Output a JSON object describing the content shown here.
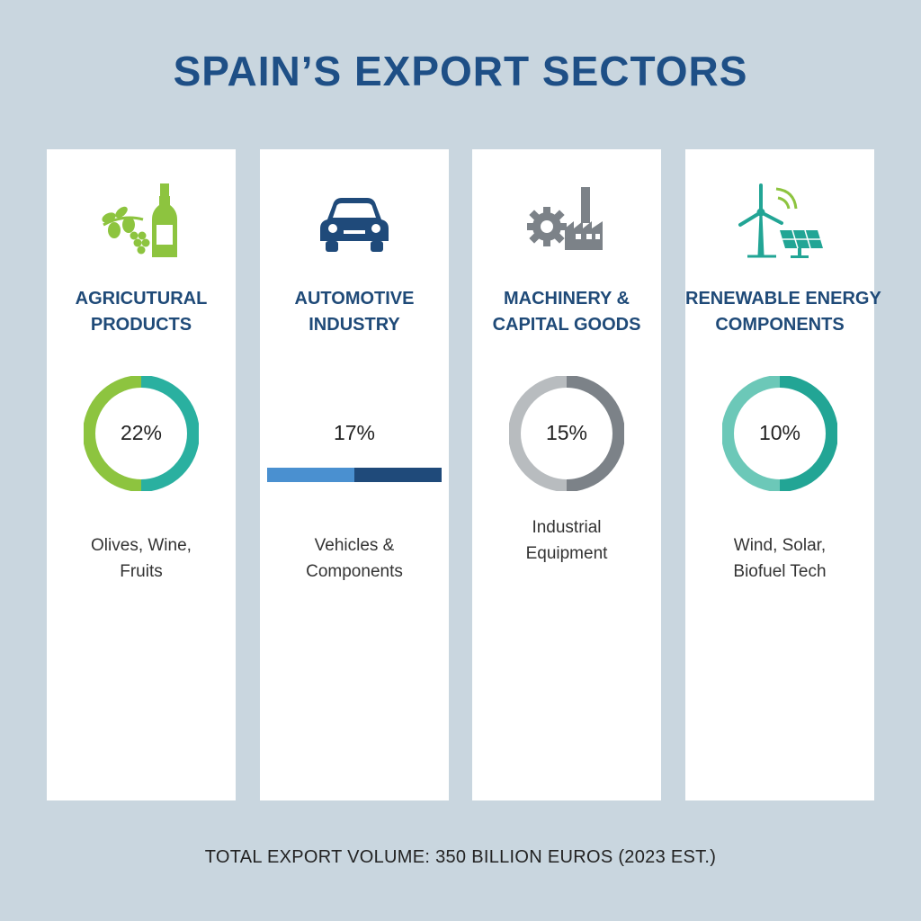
{
  "title": "SPAIN’S EXPORT SECTORS",
  "footer": "TOTAL EXPORT VOLUME: 350 BILLION EUROS (2023 EST.)",
  "chart_data": {
    "type": "donut",
    "title": "SPAIN’S EXPORT SECTORS",
    "unit": "%",
    "categories": [
      "Agricutural Products",
      "Automotive Industry",
      "Machinery & Capital Goods",
      "Renewable Energy Components"
    ],
    "values": [
      22,
      17,
      15,
      10
    ]
  },
  "sectors": [
    {
      "name_line1": "AGRICUTURAL",
      "name_line2": "PRODUCTS",
      "percent_label": "22%",
      "value": 22,
      "desc_line1": "Olives, Wine,",
      "desc_line2": "Fruits",
      "icon": "olive-wine-icon",
      "colors": [
        "#8dc43f",
        "#2ab0a0"
      ]
    },
    {
      "name_line1": "AUTOMOTIVE",
      "name_line2": "INDUSTRY",
      "percent_label": "17%",
      "value": 17,
      "desc_line1": "Vehicles &",
      "desc_line2": "Components",
      "icon": "car-icon",
      "colors": [
        "#4a90d0",
        "#1f4a7a"
      ]
    },
    {
      "name_line1": "MACHINERY &",
      "name_line2": "CAPITAL GOODS",
      "percent_label": "15%",
      "value": 15,
      "desc_line1": "Industrial",
      "desc_line2": "Equipment",
      "icon": "gear-factory-icon",
      "colors": [
        "#b8bcbf",
        "#7c8288"
      ]
    },
    {
      "name_line1": "RENEWABLE ENERGY",
      "name_line2": "COMPONENTS",
      "percent_label": "10%",
      "value": 10,
      "desc_line1": "Wind, Solar,",
      "desc_line2": "Biofuel Tech",
      "icon": "wind-solar-icon",
      "colors": [
        "#6cc8b8",
        "#22a595"
      ]
    }
  ]
}
